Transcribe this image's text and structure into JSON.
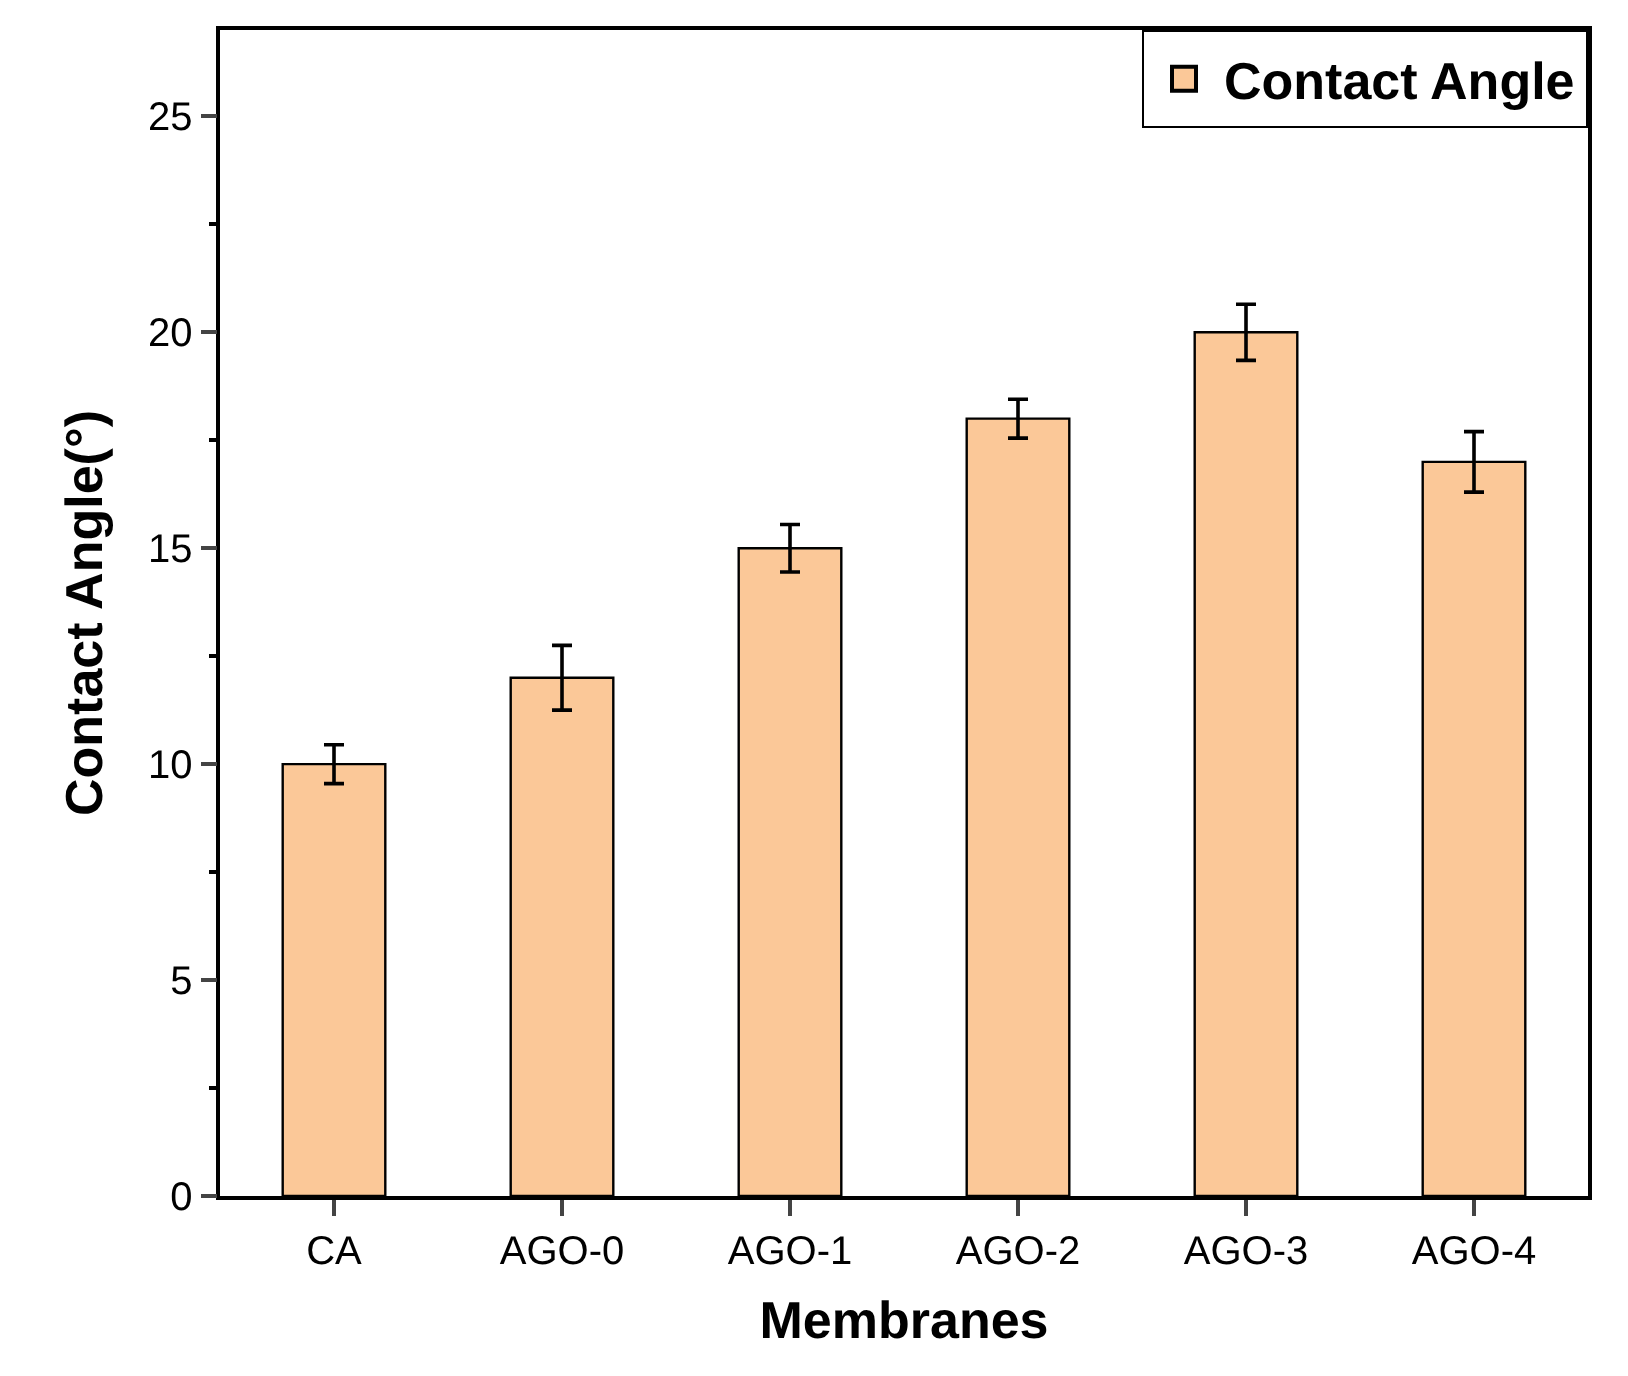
{
  "chart_data": {
    "type": "bar",
    "xlabel": "Membranes",
    "ylabel": "Contact Angle(°)",
    "categories": [
      "CA",
      "AGO-0",
      "AGO-1",
      "AGO-2",
      "AGO-3",
      "AGO-4"
    ],
    "series": [
      {
        "name": "Contact Angle",
        "color": "#fbc898",
        "values": [
          10,
          12,
          15,
          18,
          20,
          17
        ],
        "errors": [
          0.45,
          0.75,
          0.55,
          0.45,
          0.65,
          0.7
        ]
      }
    ],
    "ylim": [
      0,
      27
    ],
    "yticks": [
      0,
      5,
      10,
      15,
      20,
      25
    ],
    "legend": "top right"
  }
}
